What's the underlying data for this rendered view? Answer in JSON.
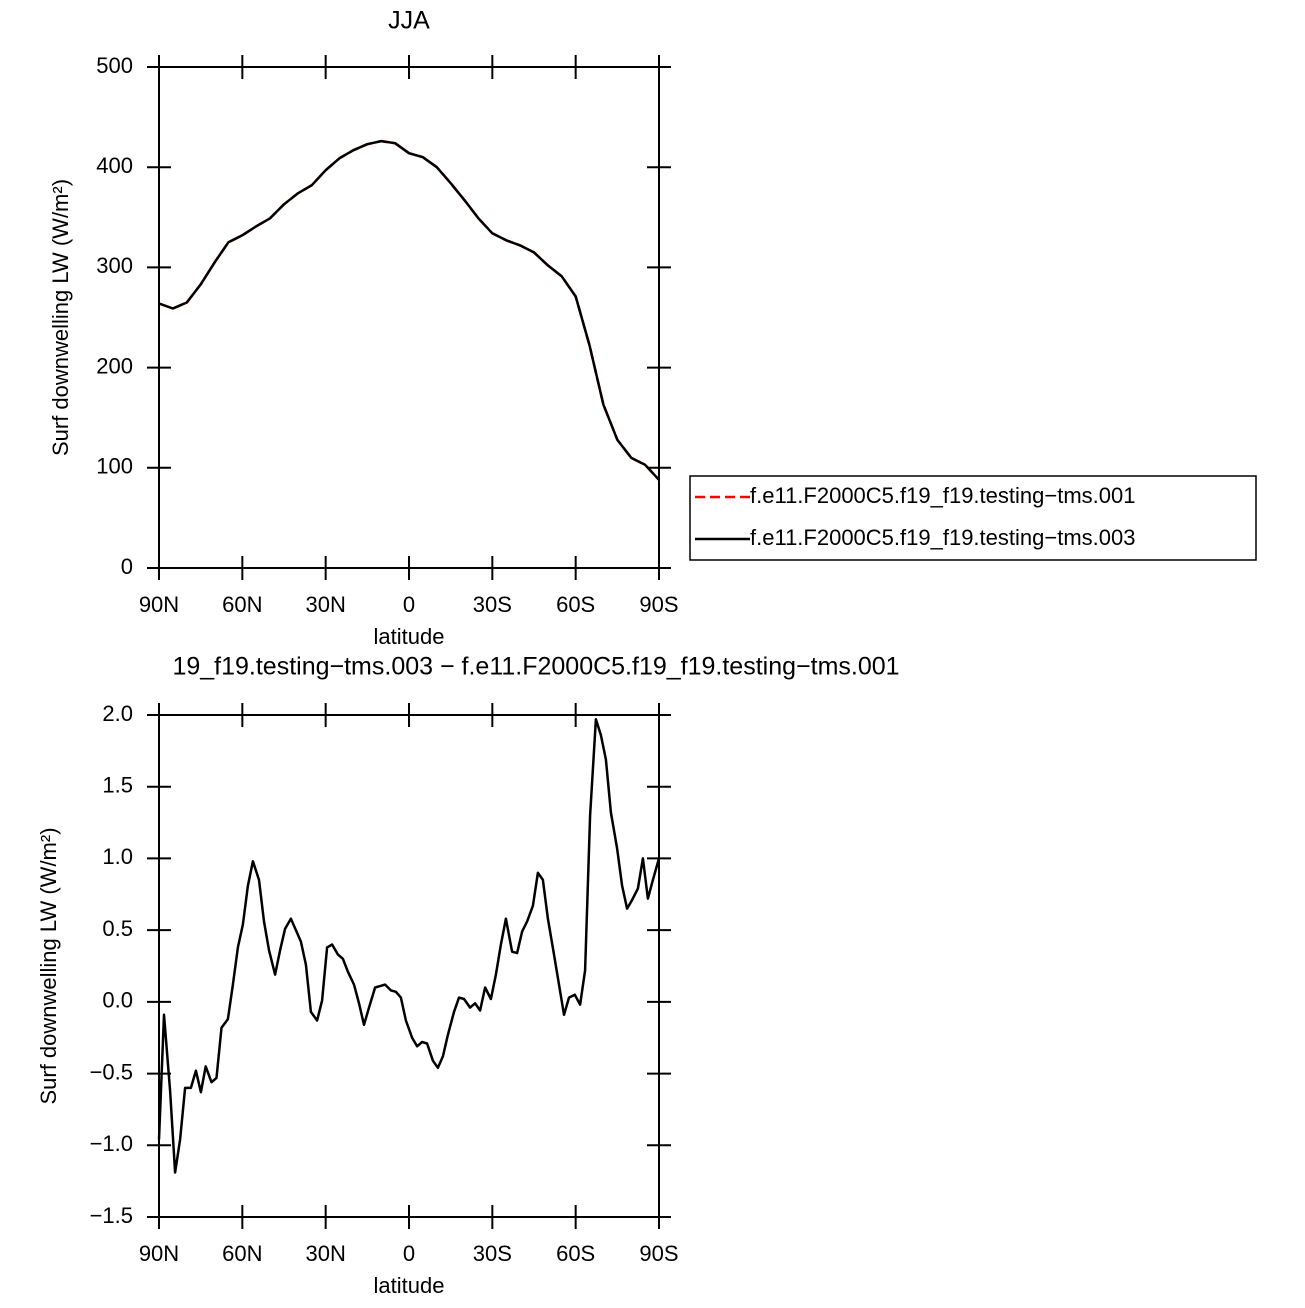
{
  "chart_data": [
    {
      "type": "line",
      "title": "JJA",
      "xlabel": "latitude",
      "ylabel": "Surf downwelling LW (W/m²)",
      "xlim": [
        90,
        -90
      ],
      "xticks": [
        {
          "value": 90,
          "label": "90N"
        },
        {
          "value": 60,
          "label": "60N"
        },
        {
          "value": 30,
          "label": "30N"
        },
        0,
        {
          "value": -30,
          "label": "30S"
        },
        {
          "value": -60,
          "label": "60S"
        },
        {
          "value": -90,
          "label": "90S"
        }
      ],
      "ylim": [
        0,
        500
      ],
      "yticks": [
        0,
        100,
        200,
        300,
        400,
        500
      ],
      "legend": "right",
      "x": [
        90,
        85,
        80,
        75,
        70,
        65,
        60,
        55,
        50,
        45,
        40,
        35,
        30,
        25,
        20,
        15,
        10,
        5,
        0,
        -5,
        -10,
        -15,
        -20,
        -25,
        -30,
        -35,
        -40,
        -45,
        -50,
        -55,
        -60,
        -65,
        -70,
        -75,
        -80,
        -85,
        -90
      ],
      "series": [
        {
          "name": "f.e11.F2000C5.f19_f19.testing−tms.001",
          "color": "#ff0000",
          "dash": true,
          "values": [
            264,
            259,
            265,
            283,
            305,
            325,
            332,
            341,
            349,
            363,
            374,
            382,
            397,
            409,
            417,
            423,
            426,
            424,
            414,
            410,
            400,
            384,
            367,
            349,
            334,
            327,
            322,
            315,
            302,
            291,
            271,
            222,
            163,
            128,
            110,
            103,
            88
          ]
        },
        {
          "name": "f.e11.F2000C5.f19_f19.testing−tms.003",
          "color": "#000000",
          "dash": false,
          "values": [
            264,
            259,
            265,
            283,
            305,
            325,
            332,
            341,
            349,
            363,
            374,
            382,
            397,
            409,
            417,
            423,
            426,
            424,
            414,
            410,
            400,
            384,
            367,
            349,
            334,
            327,
            322,
            315,
            302,
            291,
            271,
            222,
            163,
            128,
            110,
            103,
            88
          ]
        }
      ]
    },
    {
      "type": "line",
      "title": "19_f19.testing−tms.003 − f.e11.F2000C5.f19_f19.testing−tms.001",
      "xlabel": "latitude",
      "ylabel": "Surf downwelling LW (W/m²)",
      "xlim": [
        90,
        -90
      ],
      "xticks": [
        {
          "value": 90,
          "label": "90N"
        },
        {
          "value": 60,
          "label": "60N"
        },
        {
          "value": 30,
          "label": "30N"
        },
        0,
        {
          "value": -30,
          "label": "30S"
        },
        {
          "value": -60,
          "label": "60S"
        },
        {
          "value": -90,
          "label": "90S"
        }
      ],
      "ylim": [
        -1.5,
        2.0
      ],
      "yticks": [
        {
          "value": -1.5,
          "label": "−1.5"
        },
        {
          "value": -1,
          "label": "−1.0"
        },
        {
          "value": -0.5,
          "label": "−0.5"
        },
        {
          "value": 0,
          "label": "0.0"
        },
        0.5,
        {
          "value": 1,
          "label": "1.0"
        },
        1.5,
        {
          "value": 2,
          "label": "2.0"
        }
      ],
      "x": [
        90,
        88.2,
        86.0,
        84.2,
        82.4,
        80.6,
        78.5,
        76.7,
        74.9,
        73.2,
        71.1,
        69.3,
        67.5,
        65.2,
        63.4,
        61.6,
        59.8,
        58.0,
        56.2,
        54.0,
        52.2,
        50.4,
        48.2,
        46.4,
        44.6,
        42.5,
        40.7,
        38.9,
        37.1,
        35.3,
        33.1,
        31.3,
        29.5,
        27.7,
        25.6,
        23.8,
        22.0,
        19.8,
        18.0,
        16.2,
        14.4,
        12.2,
        10.4,
        8.6,
        6.5,
        4.7,
        2.9,
        1.1,
        -1.1,
        -2.9,
        -4.7,
        -6.5,
        -8.6,
        -10.4,
        -12.2,
        -14.0,
        -16.2,
        -18.0,
        -19.8,
        -22.0,
        -23.8,
        -25.6,
        -27.4,
        -29.5,
        -31.3,
        -33.1,
        -34.9,
        -37.1,
        -38.9,
        -40.7,
        -42.5,
        -44.6,
        -46.4,
        -48.2,
        -50.0,
        -52.2,
        -54.0,
        -55.8,
        -57.6,
        -59.7,
        -61.6,
        -63.4,
        -65.2,
        -67.3,
        -69.1,
        -70.9,
        -72.7,
        -74.9,
        -76.7,
        -78.5,
        -80.3,
        -82.4,
        -84.2,
        -86.0,
        -87.8,
        -90
      ],
      "series": [
        {
          "color": "#000000",
          "dash": false,
          "values": [
            -0.96,
            -0.09,
            -0.62,
            -1.19,
            -0.96,
            -0.6,
            -0.6,
            -0.48,
            -0.63,
            -0.45,
            -0.56,
            -0.53,
            -0.18,
            -0.12,
            0.12,
            0.38,
            0.54,
            0.81,
            0.98,
            0.85,
            0.56,
            0.36,
            0.19,
            0.36,
            0.51,
            0.58,
            0.5,
            0.42,
            0.26,
            -0.07,
            -0.13,
            0.01,
            0.38,
            0.4,
            0.33,
            0.3,
            0.21,
            0.12,
            -0.01,
            -0.16,
            -0.04,
            0.1,
            0.11,
            0.12,
            0.08,
            0.07,
            0.03,
            -0.13,
            -0.25,
            -0.31,
            -0.28,
            -0.29,
            -0.41,
            -0.46,
            -0.38,
            -0.23,
            -0.07,
            0.03,
            0.02,
            -0.04,
            -0.01,
            -0.06,
            0.1,
            0.02,
            0.19,
            0.4,
            0.58,
            0.35,
            0.34,
            0.49,
            0.56,
            0.67,
            0.9,
            0.85,
            0.58,
            0.33,
            0.12,
            -0.09,
            0.03,
            0.05,
            -0.02,
            0.22,
            1.3,
            1.97,
            1.86,
            1.69,
            1.32,
            1.07,
            0.81,
            0.65,
            0.71,
            0.79,
            1.0,
            0.72,
            0.85,
            1.0
          ]
        }
      ]
    }
  ]
}
